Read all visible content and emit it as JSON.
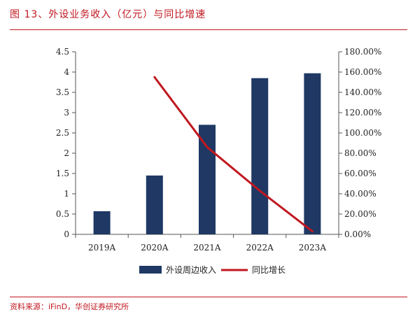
{
  "figure": {
    "title": "图 13、外设业务收入（亿元）与同比增速",
    "source": "资料来源：iFinD，华创证券研究所"
  },
  "chart_data": {
    "type": "bar",
    "categories": [
      "2019A",
      "2020A",
      "2021A",
      "2022A",
      "2023A"
    ],
    "series": [
      {
        "name": "外设周边收入",
        "type": "bar",
        "axis": "left",
        "color": "#1f3864",
        "values": [
          0.57,
          1.45,
          2.7,
          3.85,
          3.97
        ]
      },
      {
        "name": "同比增长",
        "type": "line",
        "axis": "right",
        "color": "#c0171f",
        "values": [
          null,
          1.55,
          0.86,
          0.43,
          0.03
        ]
      }
    ],
    "y_left": {
      "min": 0,
      "max": 4.5,
      "ticks": [
        0,
        0.5,
        1,
        1.5,
        2,
        2.5,
        3,
        3.5,
        4,
        4.5
      ],
      "tick_labels": [
        "0",
        "0.5",
        "1",
        "1.5",
        "2",
        "2.5",
        "3",
        "3.5",
        "4",
        "4.5"
      ]
    },
    "y_right": {
      "min": 0,
      "max": 1.8,
      "ticks": [
        0,
        0.2,
        0.4,
        0.6,
        0.8,
        1.0,
        1.2,
        1.4,
        1.6,
        1.8
      ],
      "tick_labels": [
        "0.00%",
        "20.00%",
        "40.00%",
        "60.00%",
        "80.00%",
        "100.00%",
        "120.00%",
        "140.00%",
        "160.00%",
        "180.00%"
      ]
    },
    "legend": {
      "position": "bottom",
      "entries": [
        "外设周边收入",
        "同比增长"
      ]
    },
    "grid": false
  }
}
